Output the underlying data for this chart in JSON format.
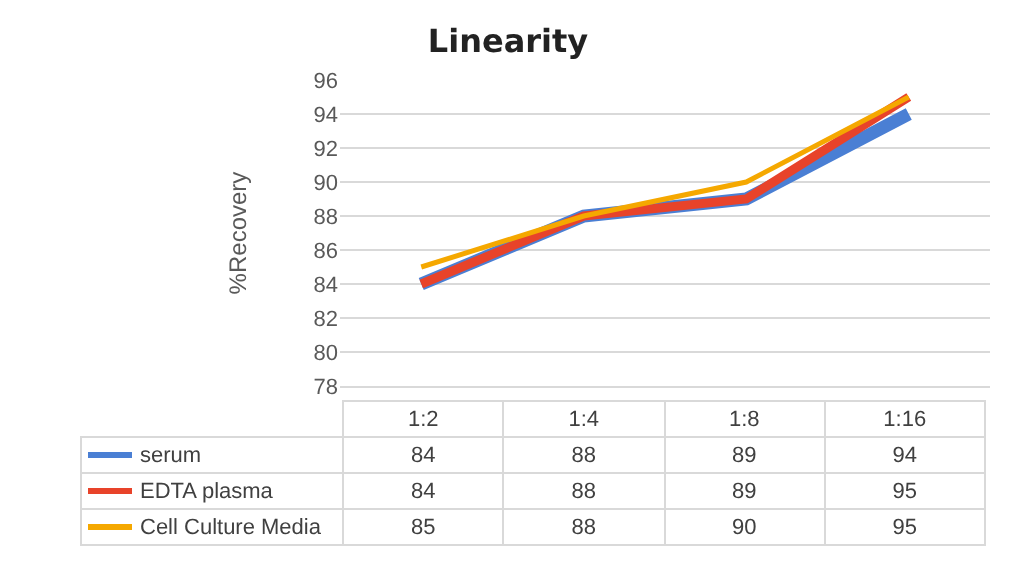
{
  "chart_data": {
    "type": "line",
    "title": "Linearity",
    "ylabel": "%Recovery",
    "categories": [
      "1:2",
      "1:4",
      "1:8",
      "1:16"
    ],
    "series": [
      {
        "name": "serum",
        "color": "#4a7fd4",
        "values": [
          84,
          88,
          89,
          94
        ]
      },
      {
        "name": "EDTA plasma",
        "color": "#e8432a",
        "values": [
          84,
          88,
          89,
          95
        ]
      },
      {
        "name": "Cell Culture Media",
        "color": "#f5a800",
        "values": [
          85,
          88,
          90,
          95
        ]
      }
    ],
    "ylim": [
      78,
      96
    ],
    "yticks": [
      78,
      80,
      82,
      84,
      86,
      88,
      90,
      92,
      94,
      96
    ],
    "grid": "y",
    "legend": "bottom",
    "data_labels": true,
    "marker": "none",
    "line_style": "solid"
  }
}
